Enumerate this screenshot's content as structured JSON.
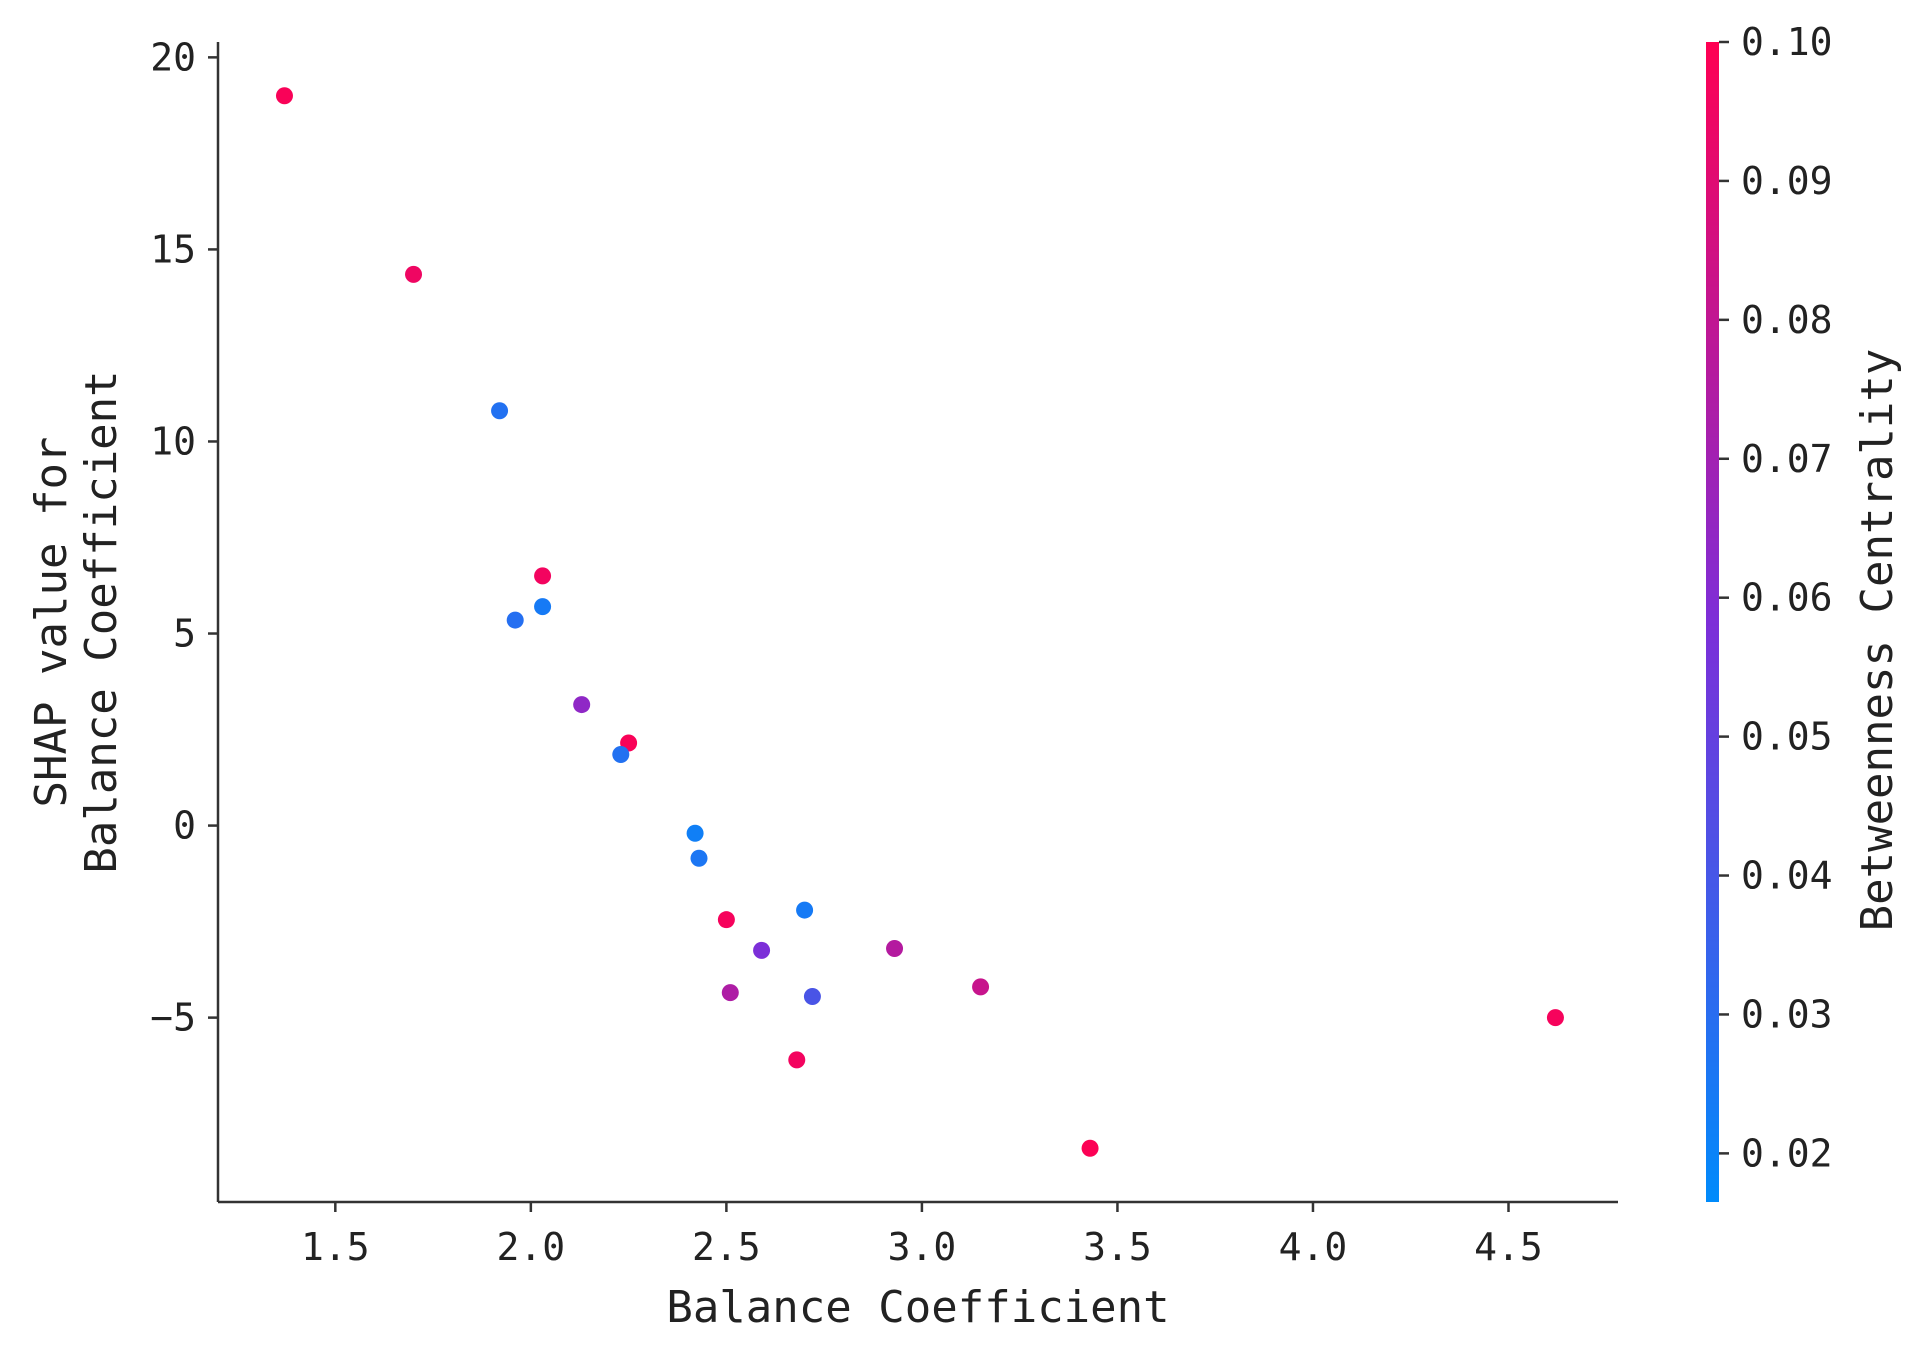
{
  "chart_data": {
    "type": "scatter",
    "title": "",
    "xlabel": "Balance Coefficient",
    "ylabel_lines": [
      "SHAP value for",
      "Balance Coefficient"
    ],
    "xlim": [
      1.2,
      4.78
    ],
    "ylim": [
      -9.8,
      20.4
    ],
    "x_ticks": [
      1.5,
      2.0,
      2.5,
      3.0,
      3.5,
      4.0,
      4.5
    ],
    "x_tick_labels": [
      "1.5",
      "2.0",
      "2.5",
      "3.0",
      "3.5",
      "4.0",
      "4.5"
    ],
    "y_ticks": [
      20,
      15,
      10,
      5,
      0,
      -5
    ],
    "y_tick_labels": [
      "20",
      "15",
      "10",
      "5",
      "0",
      "−5"
    ],
    "colorbar": {
      "label": "Betweenness Centrality",
      "range": [
        0.0165,
        0.1
      ],
      "ticks": [
        0.1,
        0.09,
        0.08,
        0.07,
        0.06,
        0.05,
        0.04,
        0.03,
        0.02
      ],
      "tick_labels": [
        "0.10",
        "0.09",
        "0.08",
        "0.07",
        "0.06",
        "0.05",
        "0.04",
        "0.03",
        "0.02"
      ],
      "color_low": "#008bfb",
      "color_mid": "#7d2ed8",
      "color_high": "#ff0052"
    },
    "points": [
      {
        "x": 1.37,
        "y": 19.0,
        "c": 0.098
      },
      {
        "x": 1.7,
        "y": 14.35,
        "c": 0.095
      },
      {
        "x": 1.92,
        "y": 10.8,
        "c": 0.028
      },
      {
        "x": 2.03,
        "y": 6.5,
        "c": 0.096
      },
      {
        "x": 1.96,
        "y": 5.35,
        "c": 0.029
      },
      {
        "x": 2.03,
        "y": 5.7,
        "c": 0.024
      },
      {
        "x": 2.13,
        "y": 3.15,
        "c": 0.064
      },
      {
        "x": 2.25,
        "y": 2.15,
        "c": 0.098
      },
      {
        "x": 2.23,
        "y": 1.85,
        "c": 0.028
      },
      {
        "x": 2.42,
        "y": -0.2,
        "c": 0.022
      },
      {
        "x": 2.43,
        "y": -0.85,
        "c": 0.026
      },
      {
        "x": 2.5,
        "y": -2.45,
        "c": 0.097
      },
      {
        "x": 2.7,
        "y": -2.2,
        "c": 0.024
      },
      {
        "x": 2.59,
        "y": -3.25,
        "c": 0.058
      },
      {
        "x": 2.93,
        "y": -3.2,
        "c": 0.076
      },
      {
        "x": 2.51,
        "y": -4.35,
        "c": 0.074
      },
      {
        "x": 2.72,
        "y": -4.45,
        "c": 0.041
      },
      {
        "x": 3.15,
        "y": -4.2,
        "c": 0.082
      },
      {
        "x": 4.62,
        "y": -5.0,
        "c": 0.097
      },
      {
        "x": 2.68,
        "y": -6.1,
        "c": 0.096
      },
      {
        "x": 3.43,
        "y": -8.4,
        "c": 0.099
      }
    ]
  }
}
